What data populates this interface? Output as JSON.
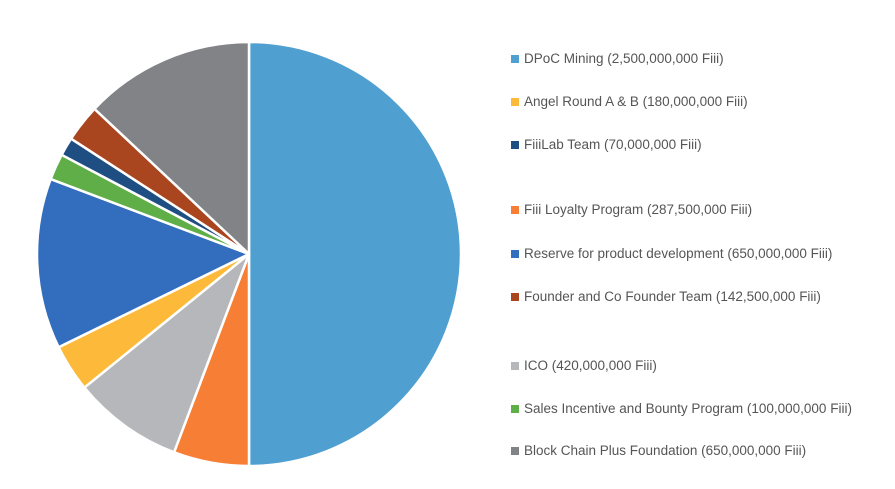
{
  "chart_data": {
    "type": "pie",
    "title": "",
    "legend_position": "right",
    "slices": [
      {
        "label": "DPoC Mining (2,500,000,000 Fiii)",
        "value": 2500000000,
        "color": "#4F9FD1"
      },
      {
        "label": "Fiii Loyalty Program (287,500,000 Fiii)",
        "value": 287500000,
        "color": "#F77F35"
      },
      {
        "label": "ICO (420,000,000 Fiii)",
        "value": 420000000,
        "color": "#B6B7BB"
      },
      {
        "label": "Angel Round A & B (180,000,000 Fiii)",
        "value": 180000000,
        "color": "#FDBA3A"
      },
      {
        "label": "Reserve for product development (650,000,000 Fiii)",
        "value": 650000000,
        "color": "#336DBE"
      },
      {
        "label": "Sales Incentive and Bounty Program (100,000,000 Fiii)",
        "value": 100000000,
        "color": "#5FAE47"
      },
      {
        "label": "FiiiLab Team (70,000,000 Fiii)",
        "value": 70000000,
        "color": "#1F4E82"
      },
      {
        "label": "Founder and Co Founder Team (142,500,000 Fiii)",
        "value": 142500000,
        "color": "#A9461F"
      },
      {
        "label": "Block Chain Plus Foundation (650,000,000 Fiii)",
        "value": 650000000,
        "color": "#828387"
      }
    ],
    "legend": [
      {
        "label": "DPoC Mining (2,500,000,000 Fiii)",
        "color": "#4F9FD1"
      },
      {
        "label": "Angel Round A & B (180,000,000 Fiii)",
        "color": "#FDBA3A"
      },
      {
        "label": "FiiiLab Team (70,000,000 Fiii)",
        "color": "#1F4E82"
      },
      {
        "label": "Fiii Loyalty Program (287,500,000 Fiii)",
        "color": "#F77F35"
      },
      {
        "label": "Reserve for product development (650,000,000 Fiii)",
        "color": "#336DBE"
      },
      {
        "label": "Founder and Co Founder Team (142,500,000 Fiii)",
        "color": "#A9461F"
      },
      {
        "label": "ICO (420,000,000 Fiii)",
        "color": "#B6B7BB"
      },
      {
        "label": "Sales Incentive and Bounty Program (100,000,000 Fiii)",
        "color": "#5FAE47"
      },
      {
        "label": "Block Chain Plus Foundation (650,000,000 Fiii)",
        "color": "#828387"
      }
    ]
  }
}
